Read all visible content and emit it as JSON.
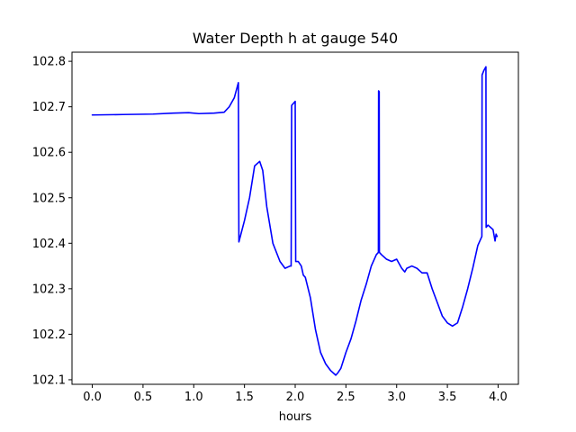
{
  "chart_data": {
    "type": "line",
    "title": "Water Depth h at gauge 540",
    "xlabel": "hours",
    "ylabel": "",
    "xlim": [
      -0.2,
      4.2
    ],
    "ylim": [
      102.09,
      102.82
    ],
    "xticks": [
      0.0,
      0.5,
      1.0,
      1.5,
      2.0,
      2.5,
      3.0,
      3.5,
      4.0
    ],
    "xtick_labels": [
      "0.0",
      "0.5",
      "1.0",
      "1.5",
      "2.0",
      "2.5",
      "3.0",
      "3.5",
      "4.0"
    ],
    "yticks": [
      102.1,
      102.2,
      102.3,
      102.4,
      102.5,
      102.6,
      102.7,
      102.8
    ],
    "ytick_labels": [
      "102.1",
      "102.2",
      "102.3",
      "102.4",
      "102.5",
      "102.6",
      "102.7",
      "102.8"
    ],
    "grid": false,
    "series": [
      {
        "color": "#0000ff",
        "x": [
          0.0,
          0.3,
          0.6,
          0.8,
          0.95,
          1.05,
          1.2,
          1.3,
          1.35,
          1.4,
          1.44,
          1.445,
          1.5,
          1.55,
          1.6,
          1.65,
          1.68,
          1.72,
          1.78,
          1.85,
          1.9,
          1.95,
          1.96,
          1.965,
          2.0,
          2.005,
          2.03,
          2.06,
          2.08,
          2.1,
          2.15,
          2.2,
          2.25,
          2.3,
          2.35,
          2.4,
          2.42,
          2.45,
          2.5,
          2.55,
          2.6,
          2.65,
          2.7,
          2.75,
          2.8,
          2.82,
          2.822,
          2.828,
          2.83,
          2.85,
          2.9,
          2.95,
          3.0,
          3.05,
          3.08,
          3.1,
          3.15,
          3.2,
          3.25,
          3.3,
          3.35,
          3.4,
          3.45,
          3.5,
          3.55,
          3.6,
          3.65,
          3.7,
          3.75,
          3.8,
          3.84,
          3.842,
          3.86,
          3.88,
          3.882,
          3.9,
          3.95,
          3.97,
          3.98,
          3.99
        ],
        "y": [
          102.682,
          102.683,
          102.684,
          102.686,
          102.687,
          102.685,
          102.686,
          102.688,
          102.7,
          102.72,
          102.753,
          102.403,
          102.45,
          102.5,
          102.57,
          102.58,
          102.56,
          102.48,
          102.4,
          102.36,
          102.345,
          102.35,
          102.35,
          102.703,
          102.712,
          102.36,
          102.36,
          102.35,
          102.33,
          102.325,
          102.28,
          102.21,
          102.16,
          102.135,
          102.12,
          102.11,
          102.115,
          102.125,
          102.16,
          102.19,
          102.23,
          102.275,
          102.31,
          102.35,
          102.375,
          102.38,
          102.735,
          102.733,
          102.38,
          102.375,
          102.365,
          102.36,
          102.365,
          102.345,
          102.337,
          102.345,
          102.35,
          102.345,
          102.335,
          102.335,
          102.3,
          102.27,
          102.24,
          102.225,
          102.218,
          102.225,
          102.26,
          102.3,
          102.345,
          102.395,
          102.415,
          102.77,
          102.78,
          102.788,
          102.435,
          102.44,
          102.43,
          102.405,
          102.42,
          102.415
        ]
      }
    ]
  }
}
